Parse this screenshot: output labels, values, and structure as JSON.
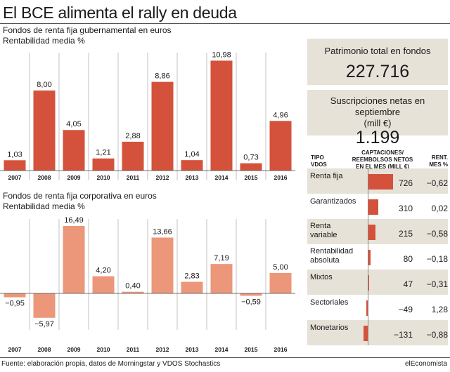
{
  "headline": "El BCE  alimenta el rally en deuda",
  "chart_data": [
    {
      "type": "bar",
      "title": "Fondos de renta fija gubernamental en euros",
      "subtitle": "Rentabilidad media %",
      "categories": [
        "2007",
        "2008",
        "2009",
        "2010",
        "2011",
        "2012",
        "2013",
        "2014",
        "2015",
        "2016"
      ],
      "values": [
        1.03,
        8.0,
        4.05,
        1.21,
        2.88,
        8.86,
        1.04,
        10.98,
        0.73,
        4.96
      ],
      "value_labels": [
        "1,03",
        "8,00",
        "4,05",
        "1,21",
        "2,88",
        "8,86",
        "1,04",
        "10,98",
        "0,73",
        "4,96"
      ],
      "ylim": [
        0,
        11.5
      ],
      "grid": false,
      "color": "#d4523b"
    },
    {
      "type": "bar",
      "title": "Fondos de renta fija corporativa en euros",
      "subtitle": "Rentabilidad media %",
      "categories": [
        "2007",
        "2008",
        "2009",
        "2010",
        "2011",
        "2012",
        "2013",
        "2014",
        "2015",
        "2016"
      ],
      "values": [
        -0.95,
        -5.97,
        16.49,
        4.2,
        0.4,
        13.66,
        2.83,
        7.19,
        -0.59,
        5.0
      ],
      "value_labels": [
        "−0,95",
        "−5,97",
        "16,49",
        "4,20",
        "0,40",
        "13,66",
        "2,83",
        "7,19",
        "−0,59",
        "5,00"
      ],
      "ylim": [
        -6.5,
        17.5
      ],
      "grid": false,
      "color": "#ec977a"
    },
    {
      "type": "bar",
      "title": "",
      "column_headers": {
        "tipo": "TIPO\nVDOS",
        "captaciones": "CAPTACIONES/\nREEMBOLSOS NETOS\nEN EL MES (MILL €)",
        "rent": "RENT.\nMES %"
      },
      "categories": [
        "Renta fija",
        "Garantizados",
        "Renta\nvariable",
        "Rentabilidad\nabsoluta",
        "Mixtos",
        "Sectoriales",
        "Monetarios"
      ],
      "values": [
        726,
        310,
        215,
        80,
        47,
        -49,
        -131
      ],
      "value_labels": [
        "726",
        "310",
        "215",
        "80",
        "47",
        "−49",
        "−131"
      ],
      "rentabilidad": [
        "−0,62",
        "0,02",
        "−0,58",
        "−0,18",
        "−0,31",
        "1,28",
        "−0,88"
      ],
      "color": "#d4523b"
    }
  ],
  "panels": {
    "patrimonio_label": "Patrimonio total en fondos",
    "patrimonio_value": "227.716",
    "suscripciones_label": "Suscripciones netas en septiembre",
    "suscripciones_unit": "(mill €)",
    "suscripciones_value": "1.199"
  },
  "footer": {
    "source": "Fuente: elaboración propia, datos de Morningstar y VDOS Stochastics",
    "brand": "elEconomista"
  },
  "colors": {
    "bar_dark": "#d4523b",
    "bar_light": "#ec977a",
    "panel_bg": "#e6e2d8"
  }
}
